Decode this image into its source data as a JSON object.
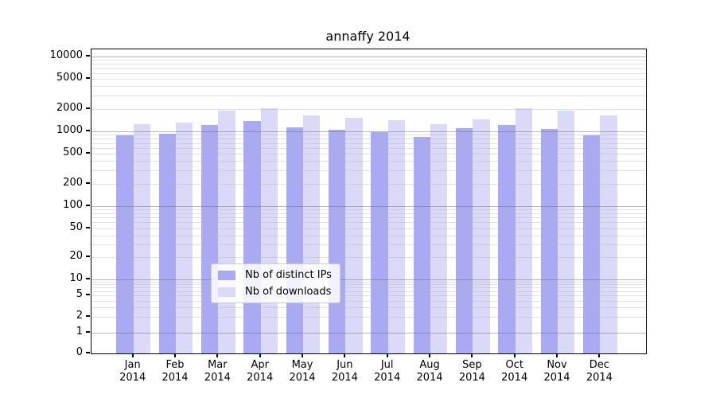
{
  "chart_data": {
    "type": "bar",
    "title": "annaffy 2014",
    "yscale": "symlog",
    "ylim": [
      0,
      12500
    ],
    "grid": "both",
    "legend_position": "lower center",
    "categories": [
      "Jan",
      "Feb",
      "Mar",
      "Apr",
      "May",
      "Jun",
      "Jul",
      "Aug",
      "Sep",
      "Oct",
      "Nov",
      "Dec"
    ],
    "category_year": "2014",
    "series": [
      {
        "name": "Nb of distinct IPs",
        "color": "#a9a9f4",
        "values": [
          885,
          930,
          1215,
          1375,
          1130,
          1050,
          975,
          840,
          1105,
          1215,
          1075,
          885
        ]
      },
      {
        "name": "Nb of downloads",
        "color": "#dadaf8",
        "values": [
          1250,
          1310,
          1890,
          2030,
          1630,
          1520,
          1410,
          1250,
          1440,
          2030,
          1890,
          1630
        ]
      }
    ],
    "ytick_values": [
      0,
      1,
      2,
      5,
      10,
      20,
      50,
      100,
      200,
      500,
      1000,
      2000,
      5000,
      10000
    ],
    "ytick_labels": [
      "0",
      "1",
      "2",
      "5",
      "10",
      "20",
      "50",
      "100",
      "200",
      "500",
      "1000",
      "2000",
      "5000",
      "10000"
    ]
  }
}
